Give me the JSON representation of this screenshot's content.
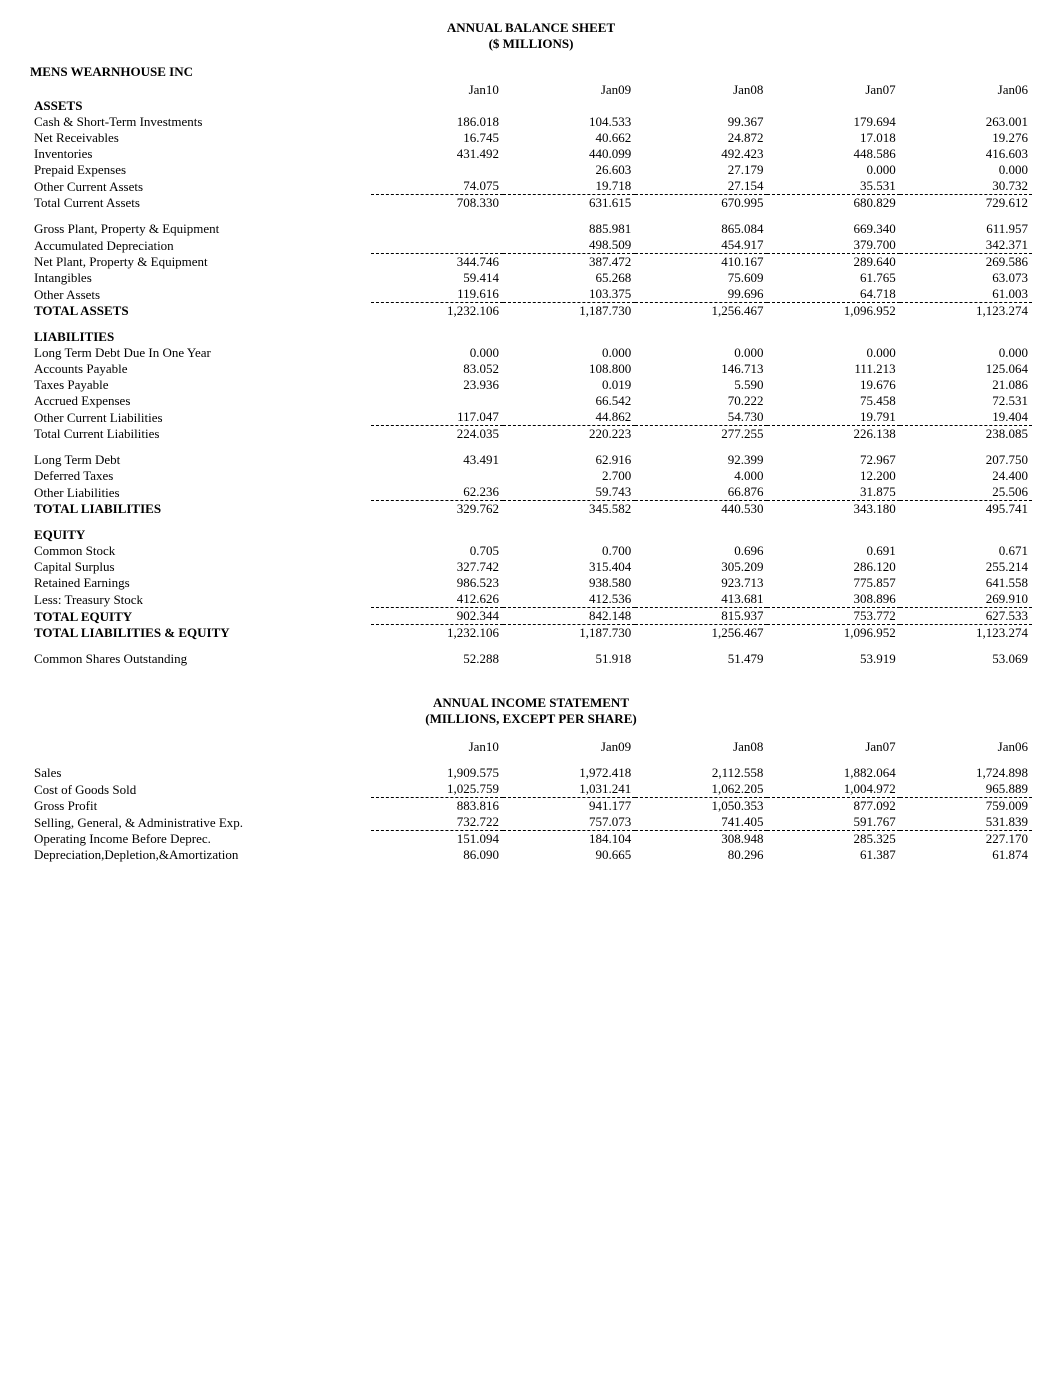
{
  "balance_sheet": {
    "title_line1": "ANNUAL BALANCE SHEET",
    "title_line2": "($ MILLIONS)",
    "company": "MENS WEARNHOUSE INC",
    "columns": [
      "Jan10",
      "Jan09",
      "Jan08",
      "Jan07",
      "Jan06"
    ],
    "sections": {
      "assets": {
        "header": "ASSETS",
        "rows": [
          {
            "label": "Cash & Short-Term Investments",
            "values": [
              "186.018",
              "104.533",
              "99.367",
              "179.694",
              "263.001"
            ]
          },
          {
            "label": "Net Receivables",
            "values": [
              "16.745",
              "40.662",
              "24.872",
              "17.018",
              "19.276"
            ]
          },
          {
            "label": "Inventories",
            "values": [
              "431.492",
              "440.099",
              "492.423",
              "448.586",
              "416.603"
            ]
          },
          {
            "label": "Prepaid Expenses",
            "values": [
              "",
              "26.603",
              "27.179",
              "0.000",
              "0.000"
            ]
          },
          {
            "label": "Other Current Assets",
            "values": [
              "74.075",
              "19.718",
              "27.154",
              "35.531",
              "30.732"
            ]
          }
        ],
        "subtotal1": {
          "label": "Total Current Assets",
          "values": [
            "708.330",
            "631.615",
            "670.995",
            "680.829",
            "729.612"
          ]
        },
        "rows2": [
          {
            "label": "Gross Plant, Property & Equipment",
            "values": [
              "",
              "885.981",
              "865.084",
              "669.340",
              "611.957"
            ]
          },
          {
            "label": "Accumulated Depreciation",
            "values": [
              "",
              "498.509",
              "454.917",
              "379.700",
              "342.371"
            ]
          }
        ],
        "subtotal2": {
          "label": "Net Plant, Property & Equipment",
          "values": [
            "344.746",
            "387.472",
            "410.167",
            "289.640",
            "269.586"
          ]
        },
        "rows3": [
          {
            "label": "Intangibles",
            "values": [
              "59.414",
              "65.268",
              "75.609",
              "61.765",
              "63.073"
            ]
          },
          {
            "label": "Other Assets",
            "values": [
              "119.616",
              "103.375",
              "99.696",
              "64.718",
              "61.003"
            ]
          }
        ],
        "total": {
          "label": "TOTAL ASSETS",
          "values": [
            "1,232.106",
            "1,187.730",
            "1,256.467",
            "1,096.952",
            "1,123.274"
          ]
        }
      },
      "liabilities": {
        "header": "LIABILITIES",
        "rows": [
          {
            "label": "Long Term Debt Due In One Year",
            "values": [
              "0.000",
              "0.000",
              "0.000",
              "0.000",
              "0.000"
            ]
          },
          {
            "label": "Accounts Payable",
            "values": [
              "83.052",
              "108.800",
              "146.713",
              "111.213",
              "125.064"
            ]
          },
          {
            "label": "Taxes Payable",
            "values": [
              "23.936",
              "0.019",
              "5.590",
              "19.676",
              "21.086"
            ]
          },
          {
            "label": "Accrued Expenses",
            "values": [
              "",
              "66.542",
              "70.222",
              "75.458",
              "72.531"
            ]
          },
          {
            "label": "Other Current Liabilities",
            "values": [
              "117.047",
              "44.862",
              "54.730",
              "19.791",
              "19.404"
            ]
          }
        ],
        "subtotal1": {
          "label": "Total Current Liabilities",
          "values": [
            "224.035",
            "220.223",
            "277.255",
            "226.138",
            "238.085"
          ]
        },
        "rows2": [
          {
            "label": "Long Term Debt",
            "values": [
              "43.491",
              "62.916",
              "92.399",
              "72.967",
              "207.750"
            ]
          },
          {
            "label": "Deferred Taxes",
            "values": [
              "",
              "2.700",
              "4.000",
              "12.200",
              "24.400"
            ]
          },
          {
            "label": "Other Liabilities",
            "values": [
              "62.236",
              "59.743",
              "66.876",
              "31.875",
              "25.506"
            ]
          }
        ],
        "total": {
          "label": "TOTAL LIABILITIES",
          "values": [
            "329.762",
            "345.582",
            "440.530",
            "343.180",
            "495.741"
          ]
        }
      },
      "equity": {
        "header": "EQUITY",
        "rows": [
          {
            "label": "Common Stock",
            "values": [
              "0.705",
              "0.700",
              "0.696",
              "0.691",
              "0.671"
            ]
          },
          {
            "label": "Capital Surplus",
            "values": [
              "327.742",
              "315.404",
              "305.209",
              "286.120",
              "255.214"
            ]
          },
          {
            "label": "Retained Earnings",
            "values": [
              "986.523",
              "938.580",
              "923.713",
              "775.857",
              "641.558"
            ]
          },
          {
            "label": "Less: Treasury Stock",
            "values": [
              "412.626",
              "412.536",
              "413.681",
              "308.896",
              "269.910"
            ]
          }
        ],
        "total": {
          "label": "TOTAL EQUITY",
          "values": [
            "902.344",
            "842.148",
            "815.937",
            "753.772",
            "627.533"
          ]
        }
      },
      "grand_total": {
        "label": "TOTAL LIABILITIES & EQUITY",
        "values": [
          "1,232.106",
          "1,187.730",
          "1,256.467",
          "1,096.952",
          "1,123.274"
        ]
      },
      "shares": {
        "label": "Common Shares Outstanding",
        "values": [
          "52.288",
          "51.918",
          "51.479",
          "53.919",
          "53.069"
        ]
      }
    }
  },
  "income_statement": {
    "title_line1": "ANNUAL INCOME STATEMENT",
    "title_line2": "(MILLIONS, EXCEPT PER SHARE)",
    "columns": [
      "Jan10",
      "Jan09",
      "Jan08",
      "Jan07",
      "Jan06"
    ],
    "rows1": [
      {
        "label": "Sales",
        "values": [
          "1,909.575",
          "1,972.418",
          "2,112.558",
          "1,882.064",
          "1,724.898"
        ]
      },
      {
        "label": "Cost of Goods Sold",
        "values": [
          "1,025.759",
          "1,031.241",
          "1,062.205",
          "1,004.972",
          "965.889"
        ]
      }
    ],
    "rows2": [
      {
        "label": "Gross Profit",
        "values": [
          "883.816",
          "941.177",
          "1,050.353",
          "877.092",
          "759.009"
        ]
      },
      {
        "label": "Selling, General, & Administrative Exp.",
        "values": [
          "732.722",
          "757.073",
          "741.405",
          "591.767",
          "531.839"
        ]
      }
    ],
    "rows3": [
      {
        "label": "Operating Income Before Deprec.",
        "values": [
          "151.094",
          "184.104",
          "308.948",
          "285.325",
          "227.170"
        ]
      },
      {
        "label": "Depreciation,Depletion,&Amortization",
        "values": [
          "86.090",
          "90.665",
          "80.296",
          "61.387",
          "61.874"
        ]
      }
    ]
  },
  "style": {
    "font_family": "Times New Roman",
    "body_fontsize": 13,
    "text_color": "#000000",
    "background_color": "#ffffff"
  }
}
